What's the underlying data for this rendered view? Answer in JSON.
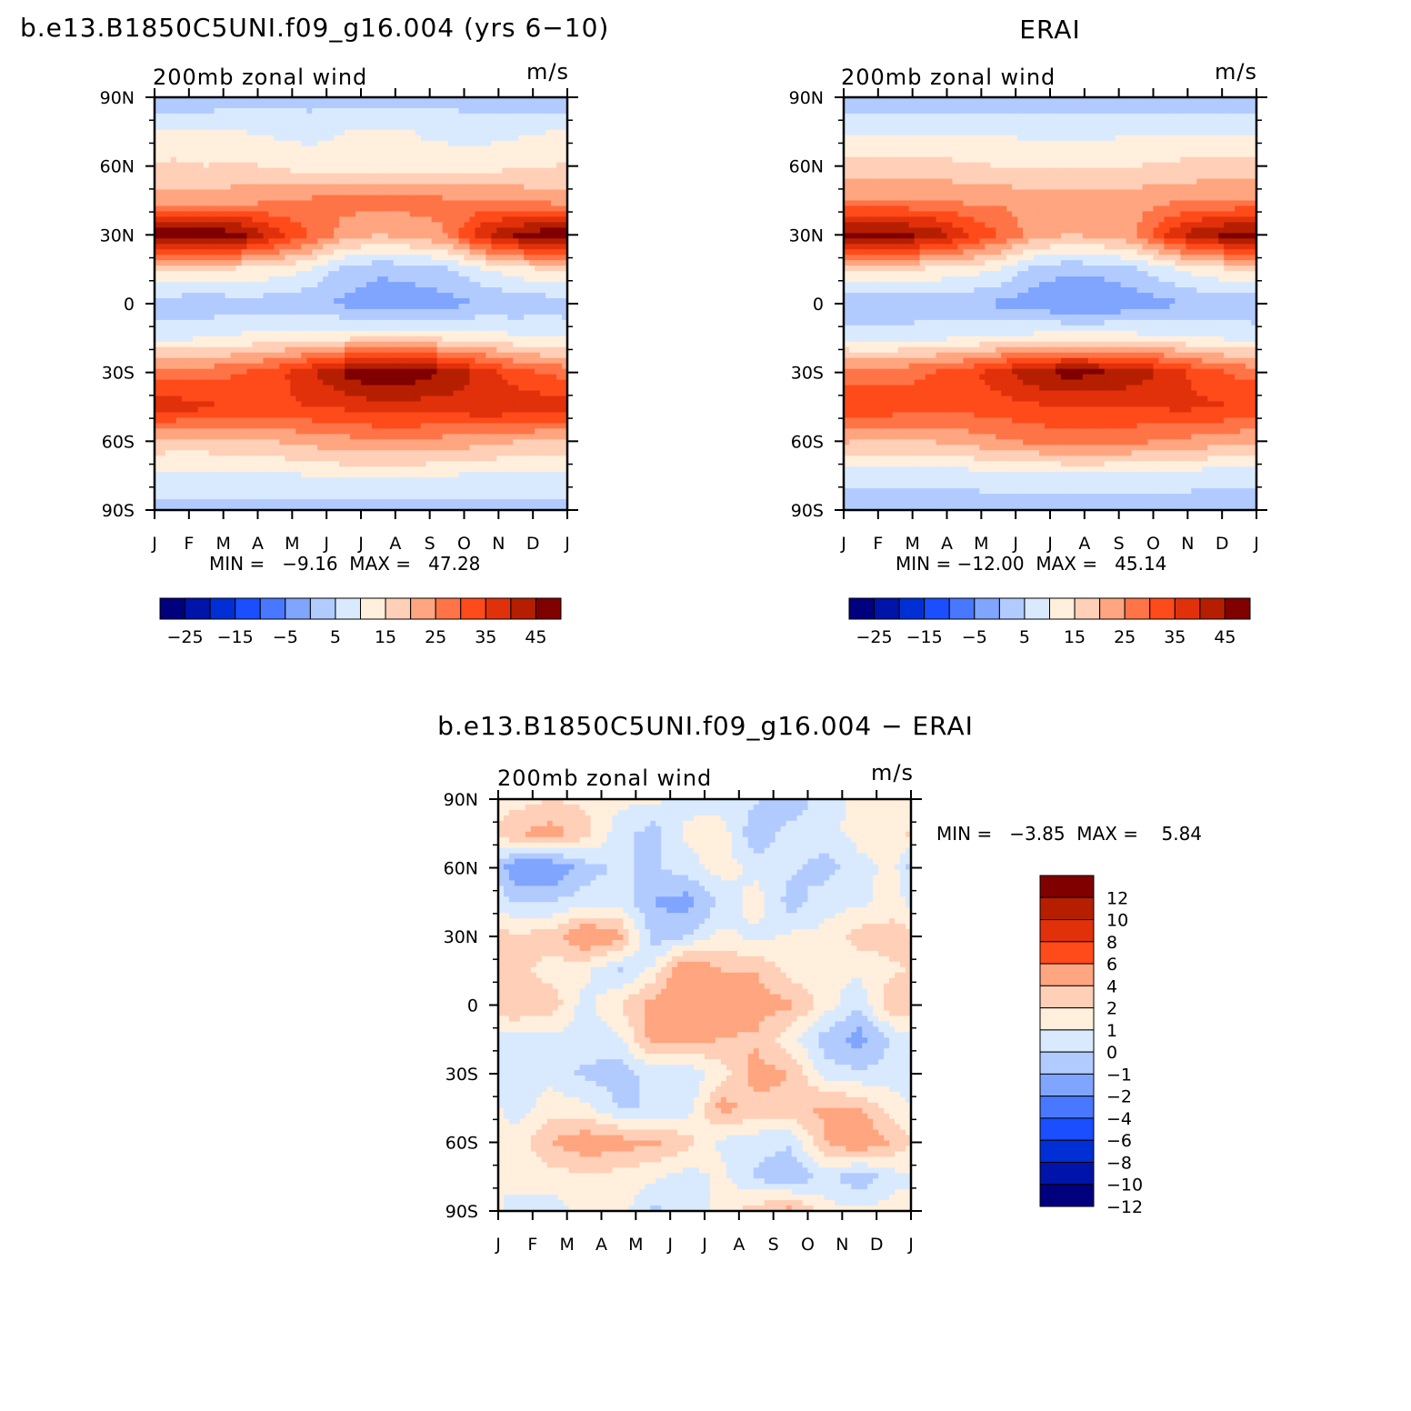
{
  "palette": {
    "full": [
      "#00007f",
      "#0014aa",
      "#002fd6",
      "#1a4eff",
      "#4778ff",
      "#80a5ff",
      "#b2cbff",
      "#d9eaff",
      "#ffefdc",
      "#ffcfb7",
      "#ffa57f",
      "#ff7447",
      "#ff4b1a",
      "#e1310b",
      "#b51f00",
      "#800000"
    ],
    "diff": [
      "#00007f",
      "#0014aa",
      "#002fd6",
      "#1a4eff",
      "#4778ff",
      "#80a5ff",
      "#b2cbff",
      "#d9eaff",
      "#ffefdc",
      "#ffcfb7",
      "#ffa57f",
      "#ff4b1a",
      "#e1310b",
      "#b51f00",
      "#800000"
    ]
  },
  "chart_data": [
    {
      "type": "heatmap",
      "title": "b.e13.B1850C5UNI.f09_g16.004 (yrs 6−10)",
      "left_string": "200mb zonal wind",
      "right_string": "m/s",
      "x_tick_labels": [
        "J",
        "F",
        "M",
        "A",
        "M",
        "J",
        "J",
        "A",
        "S",
        "O",
        "N",
        "D",
        "J"
      ],
      "y_tick_labels": [
        "90N",
        "60N",
        "30N",
        "0",
        "30S",
        "60S",
        "90S"
      ],
      "y_range": [
        -90,
        90
      ],
      "x_range": [
        "Jan",
        "Jan"
      ],
      "stats_label": "MIN =   −9.16  MAX =   47.28",
      "min": -9.16,
      "max": 47.28,
      "contour_levels": [
        -30,
        -25,
        -20,
        -15,
        -10,
        -5,
        0,
        5,
        10,
        15,
        20,
        25,
        30,
        35,
        40,
        45
      ],
      "colorbar_labels": [
        "−25",
        "−15",
        "−5",
        "5",
        "15",
        "25",
        "35",
        "45"
      ],
      "latitudes": [
        -90,
        -75,
        -60,
        -45,
        -30,
        -15,
        0,
        15,
        30,
        45,
        60,
        75,
        90
      ],
      "months": [
        "Jan",
        "Feb",
        "Mar",
        "Apr",
        "May",
        "Jun",
        "Jul",
        "Aug",
        "Sep",
        "Oct",
        "Nov",
        "Dec"
      ],
      "values": [
        [
          -2,
          -2,
          -2,
          -2,
          -2,
          -2,
          -3,
          -3,
          -3,
          -2,
          -2,
          -2
        ],
        [
          4,
          4,
          4,
          4,
          5,
          6,
          6,
          6,
          5,
          4,
          4,
          4
        ],
        [
          13,
          13,
          14,
          15,
          17,
          18,
          19,
          19,
          18,
          17,
          15,
          14
        ],
        [
          33,
          31,
          29,
          29,
          30,
          31,
          33,
          33,
          32,
          35,
          34,
          33
        ],
        [
          22,
          23,
          25,
          28,
          34,
          41,
          45,
          43,
          40,
          33,
          27,
          24
        ],
        [
          4,
          5,
          6,
          7,
          8,
          9,
          10,
          10,
          9,
          8,
          6,
          5
        ],
        [
          -3,
          -4,
          -2,
          -3,
          -4,
          -6,
          -8,
          -8,
          -7,
          -5,
          -4,
          -3
        ],
        [
          11,
          10,
          9,
          8,
          5,
          -2,
          -4,
          -3,
          -1,
          4,
          8,
          10
        ],
        [
          44,
          45,
          42,
          33,
          25,
          18,
          15,
          17,
          20,
          34,
          41,
          44
        ],
        [
          17,
          17,
          18,
          19,
          21,
          22,
          22,
          22,
          21,
          20,
          19,
          18
        ],
        [
          11,
          10,
          11,
          9,
          8,
          7,
          6,
          6,
          7,
          8,
          9,
          10
        ],
        [
          6,
          6,
          5,
          4,
          3,
          5,
          6,
          5,
          4,
          3,
          4,
          5
        ],
        [
          -4,
          -4,
          -3,
          -2,
          -2,
          -2,
          -2,
          -2,
          -2,
          -3,
          -3,
          -4
        ]
      ]
    },
    {
      "type": "heatmap",
      "title": "ERAI",
      "left_string": "200mb zonal wind",
      "right_string": "m/s",
      "x_tick_labels": [
        "J",
        "F",
        "M",
        "A",
        "M",
        "J",
        "J",
        "A",
        "S",
        "O",
        "N",
        "D",
        "J"
      ],
      "y_tick_labels": [
        "90N",
        "60N",
        "30N",
        "0",
        "30S",
        "60S",
        "90S"
      ],
      "y_range": [
        -90,
        90
      ],
      "x_range": [
        "Jan",
        "Jan"
      ],
      "stats_label": "MIN = −12.00  MAX =   45.14",
      "min": -12.0,
      "max": 45.14,
      "contour_levels": [
        -30,
        -25,
        -20,
        -15,
        -10,
        -5,
        0,
        5,
        10,
        15,
        20,
        25,
        30,
        35,
        40,
        45
      ],
      "colorbar_labels": [
        "−25",
        "−15",
        "−5",
        "5",
        "15",
        "25",
        "35",
        "45"
      ],
      "latitudes": [
        -90,
        -75,
        -60,
        -45,
        -30,
        -15,
        0,
        15,
        30,
        45,
        60,
        75,
        90
      ],
      "months": [
        "Jan",
        "Feb",
        "Mar",
        "Apr",
        "May",
        "Jun",
        "Jul",
        "Aug",
        "Sep",
        "Oct",
        "Nov",
        "Dec"
      ],
      "values": [
        [
          -3,
          -3,
          -3,
          -3,
          -3,
          -3,
          -3,
          -3,
          -3,
          -3,
          -3,
          -3
        ],
        [
          2,
          2,
          2,
          2,
          3,
          3,
          4,
          4,
          3,
          3,
          2,
          2
        ],
        [
          15,
          15,
          15,
          17,
          19,
          21,
          22,
          22,
          21,
          19,
          18,
          16
        ],
        [
          30,
          28,
          27,
          27,
          28,
          29,
          30,
          30,
          30,
          31,
          31,
          30
        ],
        [
          22,
          23,
          25,
          28,
          33,
          39,
          42,
          41,
          38,
          33,
          27,
          24
        ],
        [
          3,
          3,
          4,
          5,
          6,
          7,
          8,
          8,
          7,
          6,
          5,
          4
        ],
        [
          -5,
          -5,
          -4,
          -4,
          -6,
          -8,
          -10,
          -10,
          -8,
          -6,
          -4,
          -4
        ],
        [
          11,
          10,
          9,
          8,
          5,
          -2,
          -4,
          -3,
          -1,
          4,
          8,
          10
        ],
        [
          42,
          42,
          40,
          32,
          25,
          18,
          15,
          16,
          20,
          32,
          40,
          42
        ],
        [
          20,
          20,
          20,
          19,
          19,
          18,
          18,
          18,
          18,
          19,
          19,
          20
        ],
        [
          12,
          12,
          12,
          11,
          10,
          9,
          9,
          9,
          10,
          11,
          12,
          12
        ],
        [
          4,
          4,
          4,
          4,
          4,
          4,
          4,
          4,
          4,
          4,
          4,
          4
        ],
        [
          -3,
          -3,
          -3,
          -3,
          -3,
          -3,
          -3,
          -3,
          -3,
          -3,
          -3,
          -3
        ]
      ]
    },
    {
      "type": "heatmap",
      "title": "b.e13.B1850C5UNI.f09_g16.004 − ERAI",
      "left_string": "200mb zonal wind",
      "right_string": "m/s",
      "x_tick_labels": [
        "J",
        "F",
        "M",
        "A",
        "M",
        "J",
        "J",
        "A",
        "S",
        "O",
        "N",
        "D",
        "J"
      ],
      "y_tick_labels": [
        "90N",
        "60N",
        "30N",
        "0",
        "30S",
        "60S",
        "90S"
      ],
      "y_range": [
        -90,
        90
      ],
      "x_range": [
        "Jan",
        "Jan"
      ],
      "stats_label": "MIN =   −3.85  MAX =    5.84",
      "min": -3.85,
      "max": 5.84,
      "contour_levels": [
        -12,
        -10,
        -8,
        -6,
        -4,
        -2,
        -1,
        0,
        1,
        2,
        4,
        6,
        8,
        10,
        12
      ],
      "colorbar_labels": [
        "12",
        "10",
        "8",
        "6",
        "4",
        "2",
        "1",
        "0",
        "−1",
        "−2",
        "−4",
        "−6",
        "−8",
        "−10",
        "−12"
      ],
      "latitudes": [
        -90,
        -75,
        -60,
        -45,
        -30,
        -15,
        0,
        15,
        30,
        45,
        60,
        75,
        90
      ],
      "months": [
        "Jan",
        "Feb",
        "Mar",
        "Apr",
        "May",
        "Jun",
        "Jul",
        "Aug",
        "Sep",
        "Oct",
        "Nov",
        "Dec"
      ],
      "values": [
        [
          -0.3,
          -0.5,
          0.4,
          0.5,
          -1.2,
          -0.8,
          0.5,
          1.5,
          2.5,
          0.3,
          0.2,
          0.5
        ],
        [
          0.3,
          0.5,
          0.8,
          0.6,
          0.2,
          -0.5,
          0.3,
          -1.2,
          -2.0,
          -0.6,
          -1.8,
          -0.4
        ],
        [
          0.3,
          2.0,
          2.8,
          2.5,
          2.2,
          1.5,
          -0.3,
          -0.6,
          -0.8,
          2.0,
          3.2,
          1.8
        ],
        [
          -0.5,
          0.5,
          0.3,
          -1.0,
          -1.0,
          -0.6,
          2.5,
          1.5,
          1.8,
          2.2,
          2.0,
          0.5
        ],
        [
          -0.3,
          -0.4,
          -1.2,
          -1.5,
          -0.6,
          -0.8,
          0.5,
          2.5,
          2.0,
          -0.5,
          -0.8,
          -0.5
        ],
        [
          -0.5,
          -0.4,
          -0.5,
          -0.3,
          2.5,
          2.2,
          2.0,
          1.8,
          0.3,
          -1.5,
          -2.5,
          -0.8
        ],
        [
          2.0,
          1.8,
          -0.5,
          1.0,
          2.5,
          2.8,
          2.5,
          2.5,
          2.2,
          0.5,
          -0.8,
          2.0
        ],
        [
          1.5,
          0.5,
          0.3,
          -1.2,
          0.3,
          3.5,
          2.0,
          2.0,
          0.5,
          0.3,
          0.2,
          0.8
        ],
        [
          1.2,
          1.5,
          3.2,
          2.5,
          -1.5,
          -1.0,
          0.3,
          -0.3,
          0.2,
          0.3,
          1.5,
          1.5
        ],
        [
          -1.2,
          -1.0,
          -0.5,
          -0.3,
          -2.0,
          -2.5,
          -0.8,
          0.5,
          -1.5,
          -0.4,
          -0.3,
          0.5
        ],
        [
          -3.0,
          -3.2,
          -1.5,
          -0.8,
          -1.2,
          -0.5,
          0.5,
          -0.4,
          -0.8,
          -1.5,
          -0.3,
          0.3
        ],
        [
          2.0,
          2.5,
          1.5,
          -0.5,
          -1.5,
          0.3,
          0.5,
          -1.8,
          -0.5,
          -0.3,
          0.3,
          0.4
        ],
        [
          0.5,
          1.0,
          0.8,
          0.3,
          0.2,
          -0.4,
          -0.5,
          -0.8,
          -2.0,
          -0.3,
          0.2,
          0.5
        ]
      ]
    }
  ]
}
